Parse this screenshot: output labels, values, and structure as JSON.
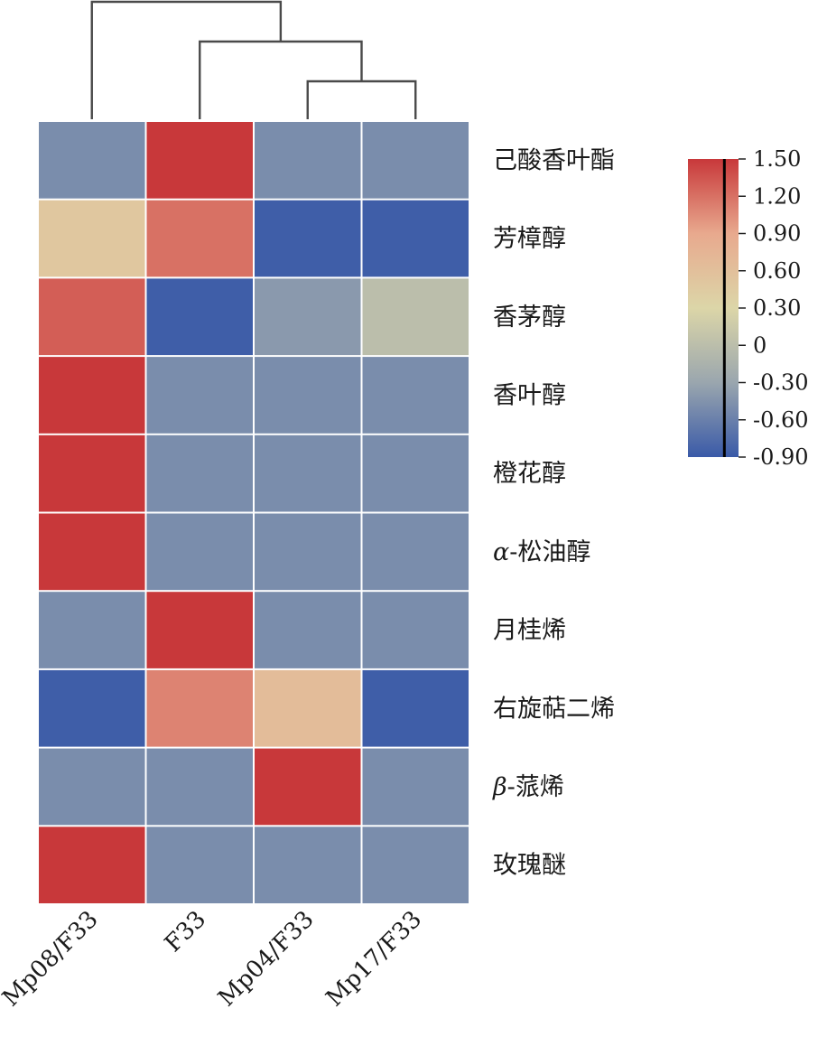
{
  "chart_data": {
    "type": "heatmap",
    "title": "",
    "xlabel": "",
    "ylabel": "",
    "columns": [
      "Mp08/F33",
      "F33",
      "Mp04/F33",
      "Mp17/F33"
    ],
    "rows": [
      {
        "label": "己酸香叶酯"
      },
      {
        "label": "芳樟醇"
      },
      {
        "label": "香茅醇"
      },
      {
        "label": "香叶醇"
      },
      {
        "label": "橙花醇"
      },
      {
        "prefix": "α",
        "label": "-松油醇"
      },
      {
        "label": "月桂烯"
      },
      {
        "label": "右旋萜二烯"
      },
      {
        "prefix": "β",
        "label": "-蒎烯"
      },
      {
        "label": "玫瑰醚"
      }
    ],
    "values": [
      [
        -0.5,
        1.5,
        -0.5,
        -0.5
      ],
      [
        0.5,
        1.2,
        -0.87,
        -0.87
      ],
      [
        1.3,
        -0.87,
        -0.4,
        0.0
      ],
      [
        1.5,
        -0.5,
        -0.5,
        -0.5
      ],
      [
        1.5,
        -0.5,
        -0.5,
        -0.5
      ],
      [
        1.5,
        -0.5,
        -0.5,
        -0.5
      ],
      [
        -0.5,
        1.5,
        -0.5,
        -0.5
      ],
      [
        -0.87,
        1.1,
        0.65,
        -0.87
      ],
      [
        -0.5,
        -0.5,
        1.5,
        -0.5
      ],
      [
        1.5,
        -0.5,
        -0.5,
        -0.5
      ]
    ],
    "dendrogram": {
      "merges": [
        {
          "left": "Mp04/F33",
          "right": "Mp17/F33",
          "level": 1
        },
        {
          "left": "F33",
          "right": "cluster-1",
          "level": 2
        },
        {
          "left": "Mp08/F33",
          "right": "cluster-2",
          "level": 3
        }
      ]
    },
    "colorbar": {
      "min": -0.9,
      "max": 1.5,
      "ticks": [
        "1.50",
        "1.20",
        "0.90",
        "0.60",
        "0.30",
        "0",
        "-0.30",
        "-0.60",
        "-0.90"
      ],
      "tick_values": [
        1.5,
        1.2,
        0.9,
        0.6,
        0.3,
        0,
        -0.3,
        -0.6,
        -0.9
      ],
      "colors": [
        "#3a5aa8",
        "#9aa6ae",
        "#dcd6a8",
        "#e8a98e",
        "#c8383a"
      ],
      "color_stops": [
        -0.9,
        -0.3,
        0.3,
        0.9,
        1.5
      ]
    }
  }
}
